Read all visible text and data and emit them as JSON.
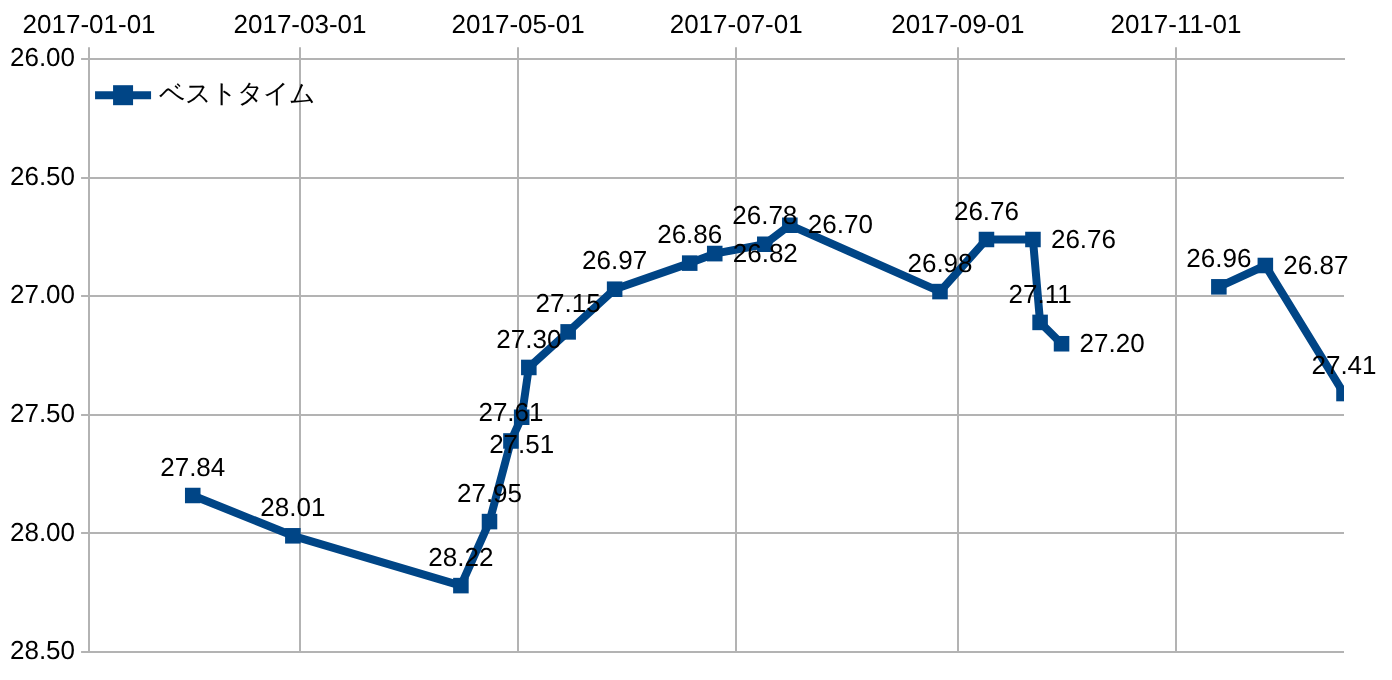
{
  "chart_data": {
    "type": "line",
    "x": [
      "2017-01-30",
      "2017-02-27",
      "2017-04-15",
      "2017-04-23",
      "2017-04-29",
      "2017-05-02",
      "2017-05-04",
      "2017-05-15",
      "2017-05-28",
      "2017-06-18",
      "2017-06-25",
      "2017-07-09",
      "2017-07-16",
      "2017-08-27",
      "2017-09-09",
      "2017-09-22",
      "2017-09-24",
      "2017-09-30",
      "2017-10-20",
      "2017-11-13",
      "2017-11-26",
      "2017-12-18"
    ],
    "series": [
      {
        "name": "ベストタイム",
        "color": "#004586",
        "values": [
          27.84,
          28.01,
          28.22,
          27.95,
          27.61,
          27.51,
          27.3,
          27.15,
          26.97,
          26.86,
          26.82,
          26.78,
          26.7,
          26.98,
          26.76,
          26.76,
          27.11,
          27.2,
          null,
          26.96,
          26.87,
          27.41
        ],
        "value_labels": [
          "27.84",
          "28.01",
          "28.22",
          "27.95",
          "27.61",
          "27.51",
          "27.30",
          "27.15",
          "26.97",
          "26.86",
          "26.82",
          "26.78",
          "26.70",
          "26.98",
          "26.76",
          "26.76",
          "27.11",
          "27.20",
          null,
          "26.96",
          "26.87",
          "27.41"
        ]
      }
    ],
    "ylim": [
      28.5,
      26.0
    ],
    "yticks": [
      {
        "value": 26,
        "label": "26.00"
      },
      {
        "value": 26.5,
        "label": "26.50"
      },
      {
        "value": 27,
        "label": "27.00"
      },
      {
        "value": 27.5,
        "label": "27.50"
      },
      {
        "value": 28,
        "label": "28.00"
      },
      {
        "value": 28.5,
        "label": "28.50"
      }
    ],
    "xlim": [
      "2017-01-01",
      "2017-12-18"
    ],
    "xticks": [
      "2017-01-01",
      "2017-03-01",
      "2017-05-01",
      "2017-07-01",
      "2017-09-01",
      "2017-11-01"
    ],
    "grid": true,
    "legend": "top left",
    "marker": "square",
    "line_style": "solid",
    "data_labels": true
  }
}
